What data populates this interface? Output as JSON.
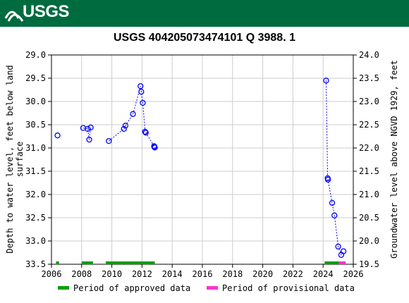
{
  "header": {
    "logo_text": "USGS",
    "brand_color": "#006b3f"
  },
  "chart_data": {
    "type": "scatter",
    "title": "USGS 404205073474101 Q  3988. 1",
    "ylabel_left_line1": "Depth to water level, feet below land",
    "ylabel_left_line2": "surface",
    "ylabel_right": "Groundwater level above NGVD 1929, feet",
    "xlim": [
      2006,
      2026
    ],
    "ylim_left": [
      29.0,
      33.5
    ],
    "ylim_left_inverted": true,
    "ylim_right": [
      19.5,
      24.0
    ],
    "x_ticks": [
      "2006",
      "2008",
      "2010",
      "2012",
      "2014",
      "2016",
      "2018",
      "2020",
      "2022",
      "2024",
      "2026"
    ],
    "y_left_ticks": [
      "29.0",
      "29.5",
      "30.0",
      "30.5",
      "31.0",
      "31.5",
      "32.0",
      "32.5",
      "33.0",
      "33.5"
    ],
    "y_right_ticks": [
      "24.0",
      "23.5",
      "23.0",
      "22.5",
      "22.0",
      "21.5",
      "21.0",
      "20.5",
      "20.0",
      "19.5"
    ],
    "grid": true,
    "series_color": "#0000ff",
    "series": [
      {
        "segments": [
          [
            [
              2006.4,
              30.73
            ]
          ],
          [
            [
              2008.1,
              30.57
            ],
            [
              2008.4,
              30.59
            ],
            [
              2008.5,
              30.82
            ],
            [
              2008.6,
              30.56
            ]
          ],
          [
            [
              2009.8,
              30.85
            ],
            [
              2010.8,
              30.59
            ],
            [
              2010.9,
              30.52
            ],
            [
              2011.4,
              30.27
            ],
            [
              2011.9,
              29.67
            ],
            [
              2011.95,
              29.79
            ],
            [
              2012.05,
              30.03
            ],
            [
              2012.2,
              30.65
            ],
            [
              2012.25,
              30.67
            ],
            [
              2012.8,
              30.96
            ],
            [
              2012.82,
              30.98
            ],
            [
              2012.85,
              30.99
            ]
          ],
          [
            [
              2024.2,
              29.55
            ],
            [
              2024.3,
              31.65
            ],
            [
              2024.32,
              31.68
            ],
            [
              2024.6,
              32.18
            ],
            [
              2024.75,
              32.45
            ],
            [
              2025.0,
              33.12
            ],
            [
              2025.2,
              33.3
            ],
            [
              2025.35,
              33.22
            ]
          ]
        ]
      }
    ],
    "approved_periods": [
      [
        2006.3,
        2006.5
      ],
      [
        2008.0,
        2008.75
      ],
      [
        2009.6,
        2012.85
      ],
      [
        2024.1,
        2025.05
      ]
    ],
    "provisional_periods": [
      [
        2025.05,
        2025.5
      ]
    ],
    "approved_color": "#00a000",
    "provisional_color": "#ff33cc",
    "legend": {
      "approved_label": "Period of approved data",
      "provisional_label": "Period of provisional data",
      "placement": "bottom"
    }
  }
}
